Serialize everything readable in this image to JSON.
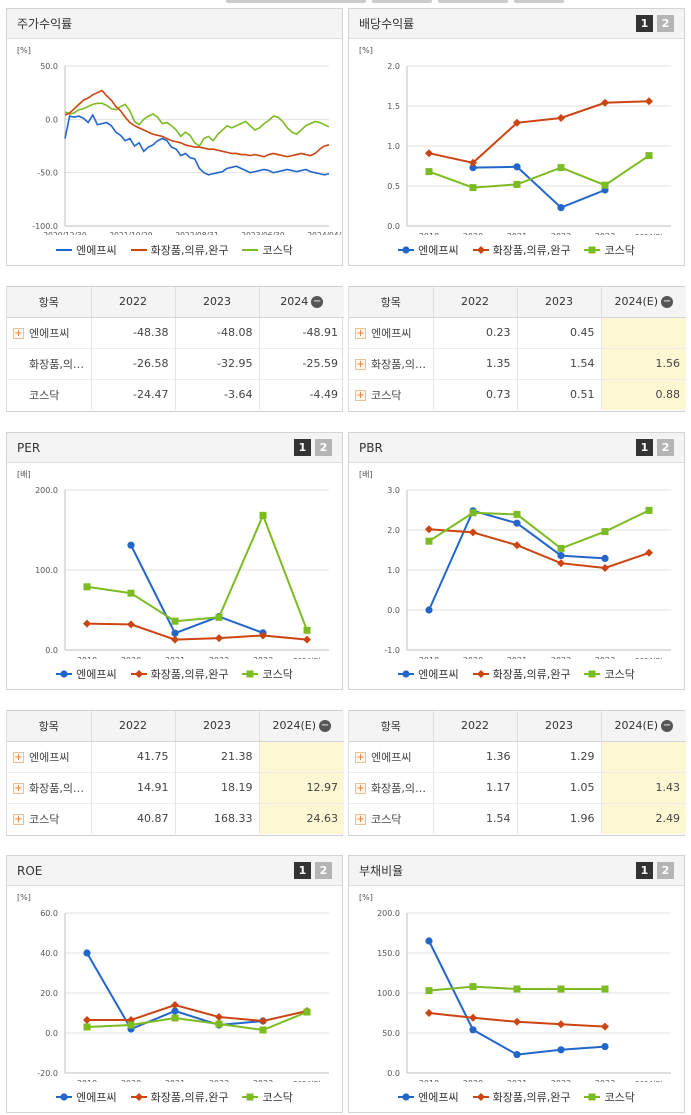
{
  "colors": {
    "entity": "#2266cc",
    "industry": "#cc4411",
    "market": "#7cbb22"
  },
  "legend_labels": [
    "엔에프씨",
    "화장품,의류,완구",
    "코스닥"
  ],
  "pager": [
    "1",
    "2"
  ],
  "table_headers": {
    "item": "항목",
    "y2022": "2022",
    "y2023": "2023",
    "y2024": "2024",
    "y2024e": "2024(E)"
  },
  "panels": {
    "stock": {
      "title": "주가수익률",
      "unit": "[%]",
      "table": [
        {
          "name": "엔에프씨",
          "v2022": "-48.38",
          "v2023": "-48.08",
          "v2024": "-48.91"
        },
        {
          "name": "화장품,의…",
          "v2022": "-26.58",
          "v2023": "-32.95",
          "v2024": "-25.59"
        },
        {
          "name": "코스닥",
          "v2022": "-24.47",
          "v2023": "-3.64",
          "v2024": "-4.49"
        }
      ]
    },
    "dividend": {
      "title": "배당수익률",
      "unit": "[%]",
      "table": [
        {
          "name": "엔에프씨",
          "v2022": "0.23",
          "v2023": "0.45",
          "v2024": ""
        },
        {
          "name": "화장품,의…",
          "v2022": "1.35",
          "v2023": "1.54",
          "v2024": "1.56"
        },
        {
          "name": "코스닥",
          "v2022": "0.73",
          "v2023": "0.51",
          "v2024": "0.88"
        }
      ]
    },
    "per": {
      "title": "PER",
      "unit": "[배]",
      "table": [
        {
          "name": "엔에프씨",
          "v2022": "41.75",
          "v2023": "21.38",
          "v2024": ""
        },
        {
          "name": "화장품,의…",
          "v2022": "14.91",
          "v2023": "18.19",
          "v2024": "12.97"
        },
        {
          "name": "코스닥",
          "v2022": "40.87",
          "v2023": "168.33",
          "v2024": "24.63"
        }
      ]
    },
    "pbr": {
      "title": "PBR",
      "unit": "[배]",
      "table": [
        {
          "name": "엔에프씨",
          "v2022": "1.36",
          "v2023": "1.29",
          "v2024": ""
        },
        {
          "name": "화장품,의…",
          "v2022": "1.17",
          "v2023": "1.05",
          "v2024": "1.43"
        },
        {
          "name": "코스닥",
          "v2022": "1.54",
          "v2023": "1.96",
          "v2024": "2.49"
        }
      ]
    },
    "roe": {
      "title": "ROE",
      "unit": "[%]"
    },
    "debt": {
      "title": "부채비율",
      "unit": "[%]"
    }
  },
  "chart_data": [
    {
      "id": "stock",
      "type": "line",
      "ylim": [
        -100,
        50
      ],
      "yticks": [
        "50.0",
        "0.0",
        "-50.0",
        "-100.0"
      ],
      "yticks_values": [
        50,
        0,
        -50,
        -100
      ],
      "xlabels": [
        "2020/12/30",
        "2021/10/29",
        "2022/08/31",
        "2023/06/30",
        "2024/04/30"
      ],
      "series": [
        {
          "name": "엔에프씨",
          "values": [
            -18,
            3,
            2,
            3,
            1,
            -3,
            4,
            -5,
            -4,
            -3,
            -6,
            -12,
            -15,
            -20,
            -18,
            -25,
            -22,
            -30,
            -26,
            -24,
            -20,
            -18,
            -20,
            -26,
            -28,
            -34,
            -32,
            -36,
            -37,
            -46,
            -50,
            -52,
            -51,
            -50,
            -49,
            -46,
            -45,
            -44,
            -46,
            -48,
            -50,
            -49,
            -48,
            -47,
            -48,
            -50,
            -49,
            -48,
            -47,
            -48,
            -49,
            -48,
            -47,
            -49,
            -50,
            -51,
            -52,
            -51
          ]
        },
        {
          "name": "화장품,의류,완구",
          "values": [
            4,
            6,
            10,
            14,
            18,
            20,
            23,
            25,
            27,
            22,
            18,
            12,
            8,
            2,
            -3,
            -6,
            -8,
            -10,
            -12,
            -14,
            -15,
            -16,
            -18,
            -20,
            -21,
            -22,
            -24,
            -25,
            -26,
            -26,
            -27,
            -28,
            -28,
            -29,
            -30,
            -31,
            -32,
            -32,
            -33,
            -33,
            -34,
            -33,
            -34,
            -35,
            -33,
            -32,
            -33,
            -34,
            -35,
            -34,
            -33,
            -32,
            -33,
            -34,
            -32,
            -28,
            -25,
            -24
          ]
        },
        {
          "name": "코스닥",
          "values": [
            7,
            5,
            6,
            9,
            10,
            12,
            14,
            15,
            15,
            13,
            10,
            9,
            12,
            14,
            8,
            -2,
            -5,
            0,
            3,
            5,
            2,
            -4,
            -3,
            -6,
            -10,
            -16,
            -12,
            -15,
            -22,
            -25,
            -18,
            -16,
            -20,
            -14,
            -10,
            -6,
            -8,
            -6,
            -4,
            -2,
            -6,
            -10,
            -8,
            -4,
            -1,
            3,
            2,
            -2,
            -8,
            -12,
            -14,
            -10,
            -6,
            -4,
            -2,
            -3,
            -5,
            -7
          ]
        }
      ]
    },
    {
      "id": "dividend",
      "type": "line",
      "categories": [
        "2019",
        "2020",
        "2021",
        "2022",
        "2023",
        "2024(E)"
      ],
      "ylim": [
        0,
        2
      ],
      "yticks": [
        "2.0",
        "1.5",
        "1.0",
        "0.5",
        "0.0"
      ],
      "yticks_values": [
        2,
        1.5,
        1,
        0.5,
        0
      ],
      "series": [
        {
          "name": "엔에프씨",
          "marker": "circle",
          "values": [
            null,
            0.73,
            0.74,
            0.23,
            0.45,
            null
          ]
        },
        {
          "name": "화장품,의류,완구",
          "marker": "diamond",
          "values": [
            0.91,
            0.79,
            1.29,
            1.35,
            1.54,
            1.56
          ]
        },
        {
          "name": "코스닥",
          "marker": "square",
          "values": [
            0.68,
            0.48,
            0.52,
            0.73,
            0.51,
            0.88
          ]
        }
      ]
    },
    {
      "id": "per",
      "type": "line",
      "categories": [
        "2019",
        "2020",
        "2021",
        "2022",
        "2023",
        "2024(E)"
      ],
      "ylim": [
        0,
        200
      ],
      "yticks": [
        "200.0",
        "100.0",
        "0.0"
      ],
      "yticks_values": [
        200,
        100,
        0
      ],
      "series": [
        {
          "name": "엔에프씨",
          "marker": "circle",
          "values": [
            null,
            131,
            21,
            41.75,
            21.38,
            null
          ]
        },
        {
          "name": "화장품,의류,완구",
          "marker": "diamond",
          "values": [
            33,
            32,
            13,
            14.91,
            18.19,
            12.97
          ]
        },
        {
          "name": "코스닥",
          "marker": "square",
          "values": [
            79,
            71,
            36,
            40.87,
            168.33,
            24.63
          ]
        }
      ]
    },
    {
      "id": "pbr",
      "type": "line",
      "categories": [
        "2019",
        "2020",
        "2021",
        "2022",
        "2023",
        "2024(E)"
      ],
      "ylim": [
        -1,
        3
      ],
      "yticks": [
        "3.0",
        "2.0",
        "1.0",
        "0.0",
        "-1.0"
      ],
      "yticks_values": [
        3,
        2,
        1,
        0,
        -1
      ],
      "series": [
        {
          "name": "엔에프씨",
          "marker": "circle",
          "values": [
            0.0,
            2.48,
            2.17,
            1.36,
            1.29,
            null
          ]
        },
        {
          "name": "화장품,의류,완구",
          "marker": "diamond",
          "values": [
            2.02,
            1.94,
            1.62,
            1.17,
            1.05,
            1.43
          ]
        },
        {
          "name": "코스닥",
          "marker": "square",
          "values": [
            1.72,
            2.43,
            2.39,
            1.54,
            1.96,
            2.49
          ]
        }
      ]
    },
    {
      "id": "roe",
      "type": "line",
      "categories": [
        "2019",
        "2020",
        "2021",
        "2022",
        "2023",
        "2024(E)"
      ],
      "ylim": [
        -20,
        60
      ],
      "yticks": [
        "60.0",
        "40.0",
        "20.0",
        "0.0",
        "-20.0"
      ],
      "yticks_values": [
        60,
        40,
        20,
        0,
        -20
      ],
      "series": [
        {
          "name": "엔에프씨",
          "marker": "circle",
          "values": [
            40,
            2,
            11,
            4,
            6,
            null
          ]
        },
        {
          "name": "화장품,의류,완구",
          "marker": "diamond",
          "values": [
            6.5,
            6.5,
            14,
            8,
            6,
            11
          ]
        },
        {
          "name": "코스닥",
          "marker": "square",
          "values": [
            3,
            4,
            7.5,
            4.5,
            1.5,
            10.5
          ]
        }
      ]
    },
    {
      "id": "debt",
      "type": "line",
      "categories": [
        "2019",
        "2020",
        "2021",
        "2022",
        "2023",
        "2024(E)"
      ],
      "ylim": [
        0,
        200
      ],
      "yticks": [
        "200.0",
        "150.0",
        "100.0",
        "50.0",
        "0.0"
      ],
      "yticks_values": [
        200,
        150,
        100,
        50,
        0
      ],
      "series": [
        {
          "name": "엔에프씨",
          "marker": "circle",
          "values": [
            165,
            54,
            23,
            29,
            33,
            null
          ]
        },
        {
          "name": "화장품,의류,완구",
          "marker": "diamond",
          "values": [
            75,
            69,
            64,
            61,
            58,
            null
          ]
        },
        {
          "name": "코스닥",
          "marker": "square",
          "values": [
            103,
            108,
            105,
            105,
            105,
            null
          ]
        }
      ]
    }
  ]
}
